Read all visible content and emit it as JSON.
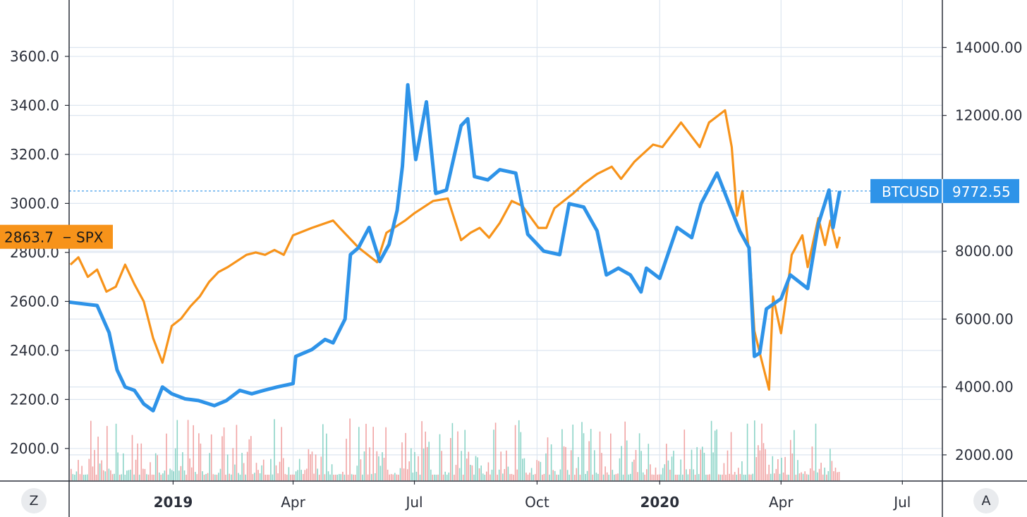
{
  "buttons": {
    "left_label": "Z",
    "right_label": "A"
  },
  "colors": {
    "spx": "#f7931a",
    "btc": "#2e93e8",
    "vol_up": "#7fcfc1",
    "vol_down": "#ef9a9a",
    "grid": "#dde6f0",
    "axis": "#2a2e39"
  },
  "chart_data": {
    "type": "line",
    "x_start": "2018-10-15",
    "x_end": "2020-07-31",
    "x_ticks": [
      {
        "label": "2019",
        "date": "2019-01-01",
        "bold": true
      },
      {
        "label": "Apr",
        "date": "2019-04-01",
        "bold": false
      },
      {
        "label": "Jul",
        "date": "2019-07-01",
        "bold": false
      },
      {
        "label": "Oct",
        "date": "2019-10-01",
        "bold": false
      },
      {
        "label": "2020",
        "date": "2020-01-01",
        "bold": true
      },
      {
        "label": "Apr",
        "date": "2020-04-01",
        "bold": false
      },
      {
        "label": "Jul",
        "date": "2020-07-01",
        "bold": false
      }
    ],
    "left_axis": {
      "ylim": [
        1870,
        3830
      ],
      "ticks": [
        "2000.0",
        "2200.0",
        "2400.0",
        "2600.0",
        "2800.0",
        "3000.0",
        "3200.0",
        "3400.0",
        "3600.0"
      ]
    },
    "right_axis": {
      "ylim": [
        1250,
        15400
      ],
      "ticks": [
        "2000.00",
        "4000.00",
        "6000.00",
        "8000.00",
        "12000.00",
        "14000.00"
      ]
    },
    "series": [
      {
        "name": "SPX",
        "axis": "left",
        "last_value_label": "2863.7",
        "points": [
          [
            "2018-10-16",
            2750
          ],
          [
            "2018-10-22",
            2780
          ],
          [
            "2018-10-29",
            2700
          ],
          [
            "2018-11-05",
            2730
          ],
          [
            "2018-11-12",
            2640
          ],
          [
            "2018-11-19",
            2660
          ],
          [
            "2018-11-26",
            2750
          ],
          [
            "2018-12-03",
            2670
          ],
          [
            "2018-12-10",
            2600
          ],
          [
            "2018-12-17",
            2450
          ],
          [
            "2018-12-24",
            2350
          ],
          [
            "2018-12-31",
            2500
          ],
          [
            "2019-01-07",
            2530
          ],
          [
            "2019-01-14",
            2580
          ],
          [
            "2019-01-21",
            2620
          ],
          [
            "2019-01-28",
            2680
          ],
          [
            "2019-02-04",
            2720
          ],
          [
            "2019-02-11",
            2740
          ],
          [
            "2019-02-25",
            2790
          ],
          [
            "2019-03-04",
            2800
          ],
          [
            "2019-03-11",
            2790
          ],
          [
            "2019-03-18",
            2810
          ],
          [
            "2019-03-25",
            2790
          ],
          [
            "2019-04-01",
            2870
          ],
          [
            "2019-04-15",
            2900
          ],
          [
            "2019-05-01",
            2930
          ],
          [
            "2019-05-06",
            2900
          ],
          [
            "2019-05-13",
            2860
          ],
          [
            "2019-05-20",
            2820
          ],
          [
            "2019-06-03",
            2760
          ],
          [
            "2019-06-10",
            2880
          ],
          [
            "2019-06-24",
            2930
          ],
          [
            "2019-07-01",
            2960
          ],
          [
            "2019-07-15",
            3010
          ],
          [
            "2019-07-26",
            3020
          ],
          [
            "2019-08-05",
            2850
          ],
          [
            "2019-08-12",
            2880
          ],
          [
            "2019-08-19",
            2900
          ],
          [
            "2019-08-26",
            2860
          ],
          [
            "2019-09-03",
            2920
          ],
          [
            "2019-09-12",
            3010
          ],
          [
            "2019-09-20",
            2990
          ],
          [
            "2019-10-02",
            2900
          ],
          [
            "2019-10-08",
            2900
          ],
          [
            "2019-10-14",
            2980
          ],
          [
            "2019-10-28",
            3040
          ],
          [
            "2019-11-05",
            3080
          ],
          [
            "2019-11-15",
            3120
          ],
          [
            "2019-11-26",
            3150
          ],
          [
            "2019-12-03",
            3100
          ],
          [
            "2019-12-13",
            3170
          ],
          [
            "2019-12-27",
            3240
          ],
          [
            "2020-01-03",
            3230
          ],
          [
            "2020-01-17",
            3330
          ],
          [
            "2020-01-31",
            3230
          ],
          [
            "2020-02-07",
            3330
          ],
          [
            "2020-02-19",
            3380
          ],
          [
            "2020-02-24",
            3230
          ],
          [
            "2020-02-28",
            2950
          ],
          [
            "2020-03-03",
            3050
          ],
          [
            "2020-03-09",
            2750
          ],
          [
            "2020-03-12",
            2480
          ],
          [
            "2020-03-16",
            2390
          ],
          [
            "2020-03-23",
            2240
          ],
          [
            "2020-03-26",
            2620
          ],
          [
            "2020-04-01",
            2470
          ],
          [
            "2020-04-06",
            2660
          ],
          [
            "2020-04-09",
            2790
          ],
          [
            "2020-04-17",
            2870
          ],
          [
            "2020-04-21",
            2740
          ],
          [
            "2020-04-29",
            2940
          ],
          [
            "2020-05-04",
            2830
          ],
          [
            "2020-05-08",
            2930
          ],
          [
            "2020-05-13",
            2820
          ],
          [
            "2020-05-15",
            2863.7
          ]
        ]
      },
      {
        "name": "BTCUSD",
        "axis": "right",
        "last_value_label": "9772.55",
        "points": [
          [
            "2018-10-15",
            6500
          ],
          [
            "2018-10-25",
            6450
          ],
          [
            "2018-11-05",
            6400
          ],
          [
            "2018-11-14",
            5600
          ],
          [
            "2018-11-20",
            4500
          ],
          [
            "2018-11-26",
            4000
          ],
          [
            "2018-12-03",
            3900
          ],
          [
            "2018-12-10",
            3500
          ],
          [
            "2018-12-17",
            3300
          ],
          [
            "2018-12-24",
            4000
          ],
          [
            "2018-12-31",
            3800
          ],
          [
            "2019-01-10",
            3650
          ],
          [
            "2019-01-20",
            3600
          ],
          [
            "2019-02-01",
            3450
          ],
          [
            "2019-02-10",
            3600
          ],
          [
            "2019-02-20",
            3900
          ],
          [
            "2019-03-01",
            3800
          ],
          [
            "2019-03-10",
            3900
          ],
          [
            "2019-03-20",
            4000
          ],
          [
            "2019-04-01",
            4100
          ],
          [
            "2019-04-03",
            4900
          ],
          [
            "2019-04-15",
            5100
          ],
          [
            "2019-04-25",
            5400
          ],
          [
            "2019-05-01",
            5300
          ],
          [
            "2019-05-10",
            6000
          ],
          [
            "2019-05-14",
            7900
          ],
          [
            "2019-05-20",
            8100
          ],
          [
            "2019-05-28",
            8700
          ],
          [
            "2019-06-05",
            7700
          ],
          [
            "2019-06-12",
            8200
          ],
          [
            "2019-06-18",
            9200
          ],
          [
            "2019-06-22",
            10500
          ],
          [
            "2019-06-26",
            12900
          ],
          [
            "2019-07-02",
            10700
          ],
          [
            "2019-07-10",
            12400
          ],
          [
            "2019-07-17",
            9700
          ],
          [
            "2019-07-25",
            9800
          ],
          [
            "2019-08-05",
            11700
          ],
          [
            "2019-08-10",
            11900
          ],
          [
            "2019-08-15",
            10200
          ],
          [
            "2019-08-25",
            10100
          ],
          [
            "2019-09-03",
            10400
          ],
          [
            "2019-09-15",
            10300
          ],
          [
            "2019-09-24",
            8500
          ],
          [
            "2019-10-06",
            8000
          ],
          [
            "2019-10-18",
            7900
          ],
          [
            "2019-10-25",
            9400
          ],
          [
            "2019-11-05",
            9300
          ],
          [
            "2019-11-15",
            8600
          ],
          [
            "2019-11-22",
            7300
          ],
          [
            "2019-12-01",
            7500
          ],
          [
            "2019-12-10",
            7300
          ],
          [
            "2019-12-18",
            6800
          ],
          [
            "2019-12-22",
            7500
          ],
          [
            "2020-01-01",
            7200
          ],
          [
            "2020-01-14",
            8700
          ],
          [
            "2020-01-25",
            8400
          ],
          [
            "2020-02-01",
            9400
          ],
          [
            "2020-02-13",
            10300
          ],
          [
            "2020-02-20",
            9600
          ],
          [
            "2020-03-01",
            8600
          ],
          [
            "2020-03-08",
            8100
          ],
          [
            "2020-03-12",
            4900
          ],
          [
            "2020-03-16",
            5000
          ],
          [
            "2020-03-21",
            6300
          ],
          [
            "2020-04-01",
            6600
          ],
          [
            "2020-04-08",
            7300
          ],
          [
            "2020-04-21",
            6900
          ],
          [
            "2020-04-29",
            8800
          ],
          [
            "2020-05-07",
            9800
          ],
          [
            "2020-05-10",
            8700
          ],
          [
            "2020-05-15",
            9772.55
          ]
        ]
      }
    ],
    "reference_line": {
      "axis": "right",
      "value": 9772.55,
      "style": "dotted"
    }
  }
}
